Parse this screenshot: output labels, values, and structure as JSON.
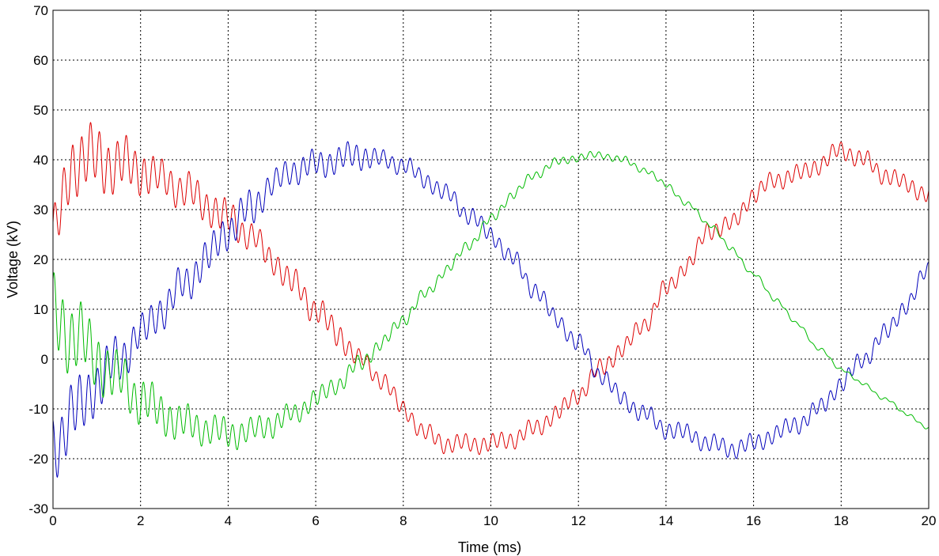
{
  "chart_data": {
    "type": "line",
    "title": "",
    "xlabel": "Time (ms)",
    "ylabel": "Voltage (kV)",
    "xlim": [
      0,
      20
    ],
    "ylim": [
      -30,
      70
    ],
    "xticks": [
      0,
      2,
      4,
      6,
      8,
      10,
      12,
      14,
      16,
      18,
      20
    ],
    "yticks": [
      -30,
      -20,
      -10,
      0,
      10,
      20,
      30,
      40,
      50,
      60,
      70
    ],
    "grid": true,
    "legend": "none",
    "series": [
      {
        "color": "#dd0000",
        "x": [
          0,
          0.5,
          1,
          1.5,
          2,
          2.5,
          3,
          3.5,
          4,
          4.5,
          5,
          5.5,
          6,
          6.5,
          7,
          7.5,
          8,
          8.5,
          9,
          9.5,
          10,
          10.5,
          11,
          11.5,
          12,
          12.5,
          13,
          13.5,
          14,
          14.5,
          15,
          15.5,
          16,
          16.5,
          17,
          17.5,
          18,
          18.5,
          19,
          19.5,
          20
        ],
        "y": [
          25,
          40,
          40,
          39,
          38,
          36,
          34,
          31,
          28,
          25,
          20,
          15,
          10,
          5,
          0,
          -4,
          -10,
          -15,
          -17,
          -17,
          -17,
          -16,
          -14,
          -11,
          -7,
          -2,
          2,
          7,
          14,
          19,
          26,
          27,
          33,
          36,
          37,
          39,
          42,
          40,
          37,
          35,
          33
        ],
        "ripple_amplitude": [
          6,
          7,
          7,
          6,
          5,
          4,
          4,
          4,
          4,
          3,
          3,
          3,
          3,
          3,
          2,
          2,
          2,
          2,
          2,
          2,
          2,
          2,
          2,
          2,
          2,
          2,
          2,
          2,
          2,
          2,
          2,
          2,
          2,
          2,
          2,
          2,
          2,
          2,
          2,
          2,
          2
        ]
      },
      {
        "color": "#0000bb",
        "x": [
          0,
          0.5,
          1,
          1.5,
          2,
          2.5,
          3,
          3.5,
          4,
          4.5,
          5,
          5.5,
          6,
          6.5,
          7,
          7.5,
          8,
          8.5,
          9,
          9.5,
          10,
          10.5,
          11,
          11.5,
          12,
          12.5,
          13,
          13.5,
          14,
          14.5,
          15,
          15.5,
          16,
          16.5,
          17,
          17.5,
          18,
          18.5,
          19,
          19.5,
          20
        ],
        "y": [
          -17,
          -11,
          -5,
          0,
          5,
          10,
          15,
          20,
          26,
          30,
          35,
          38,
          39,
          40,
          41,
          40,
          39,
          36,
          33,
          29,
          25,
          20,
          14,
          8,
          3,
          -3,
          -8,
          -11,
          -14,
          -15,
          -17,
          -18,
          -17,
          -15,
          -13,
          -10,
          -5,
          0,
          5,
          11,
          18
        ],
        "ripple_amplitude": [
          7,
          7,
          6,
          5,
          4,
          4,
          4,
          4,
          4,
          4,
          3,
          3,
          3,
          3,
          3,
          2,
          2,
          2,
          2,
          2,
          2,
          2,
          2,
          2,
          2,
          2,
          2,
          2,
          2,
          2,
          2,
          2,
          2,
          2,
          2,
          2,
          2,
          2,
          2,
          2,
          2
        ]
      },
      {
        "color": "#00bb00",
        "x": [
          0,
          0.5,
          1,
          1.5,
          2,
          2.5,
          3,
          3.5,
          4,
          4.5,
          5,
          5.5,
          6,
          6.5,
          7,
          7.5,
          8,
          8.5,
          9,
          9.5,
          10,
          10.5,
          11,
          11.5,
          12,
          12.5,
          13,
          13.5,
          14,
          14.5,
          15,
          15.5,
          16,
          16.5,
          17,
          17.5,
          18,
          18.5,
          19,
          19.5,
          20
        ],
        "y": [
          8,
          5,
          0,
          -4,
          -8,
          -11,
          -13,
          -14,
          -15,
          -14.5,
          -13,
          -11,
          -8,
          -5,
          -1,
          3,
          8,
          13,
          18,
          23,
          28,
          33,
          37,
          39.5,
          40.5,
          41,
          40,
          38,
          35,
          31,
          27,
          22,
          17,
          12,
          7,
          2,
          -2,
          -5,
          -8,
          -11,
          -14
        ],
        "ripple_amplitude": [
          8,
          7,
          6,
          5,
          4.5,
          4,
          3.5,
          3,
          3,
          2.5,
          2.5,
          2,
          2,
          1.8,
          1.6,
          1.4,
          1.2,
          1.1,
          1,
          1,
          1,
          0.9,
          0.9,
          0.8,
          0.8,
          0.7,
          0.7,
          0.6,
          0.6,
          0.5,
          0.5,
          0.5,
          0.4,
          0.4,
          0.4,
          0.3,
          0.3,
          0.3,
          0.3,
          0.3,
          0.3
        ]
      }
    ]
  }
}
